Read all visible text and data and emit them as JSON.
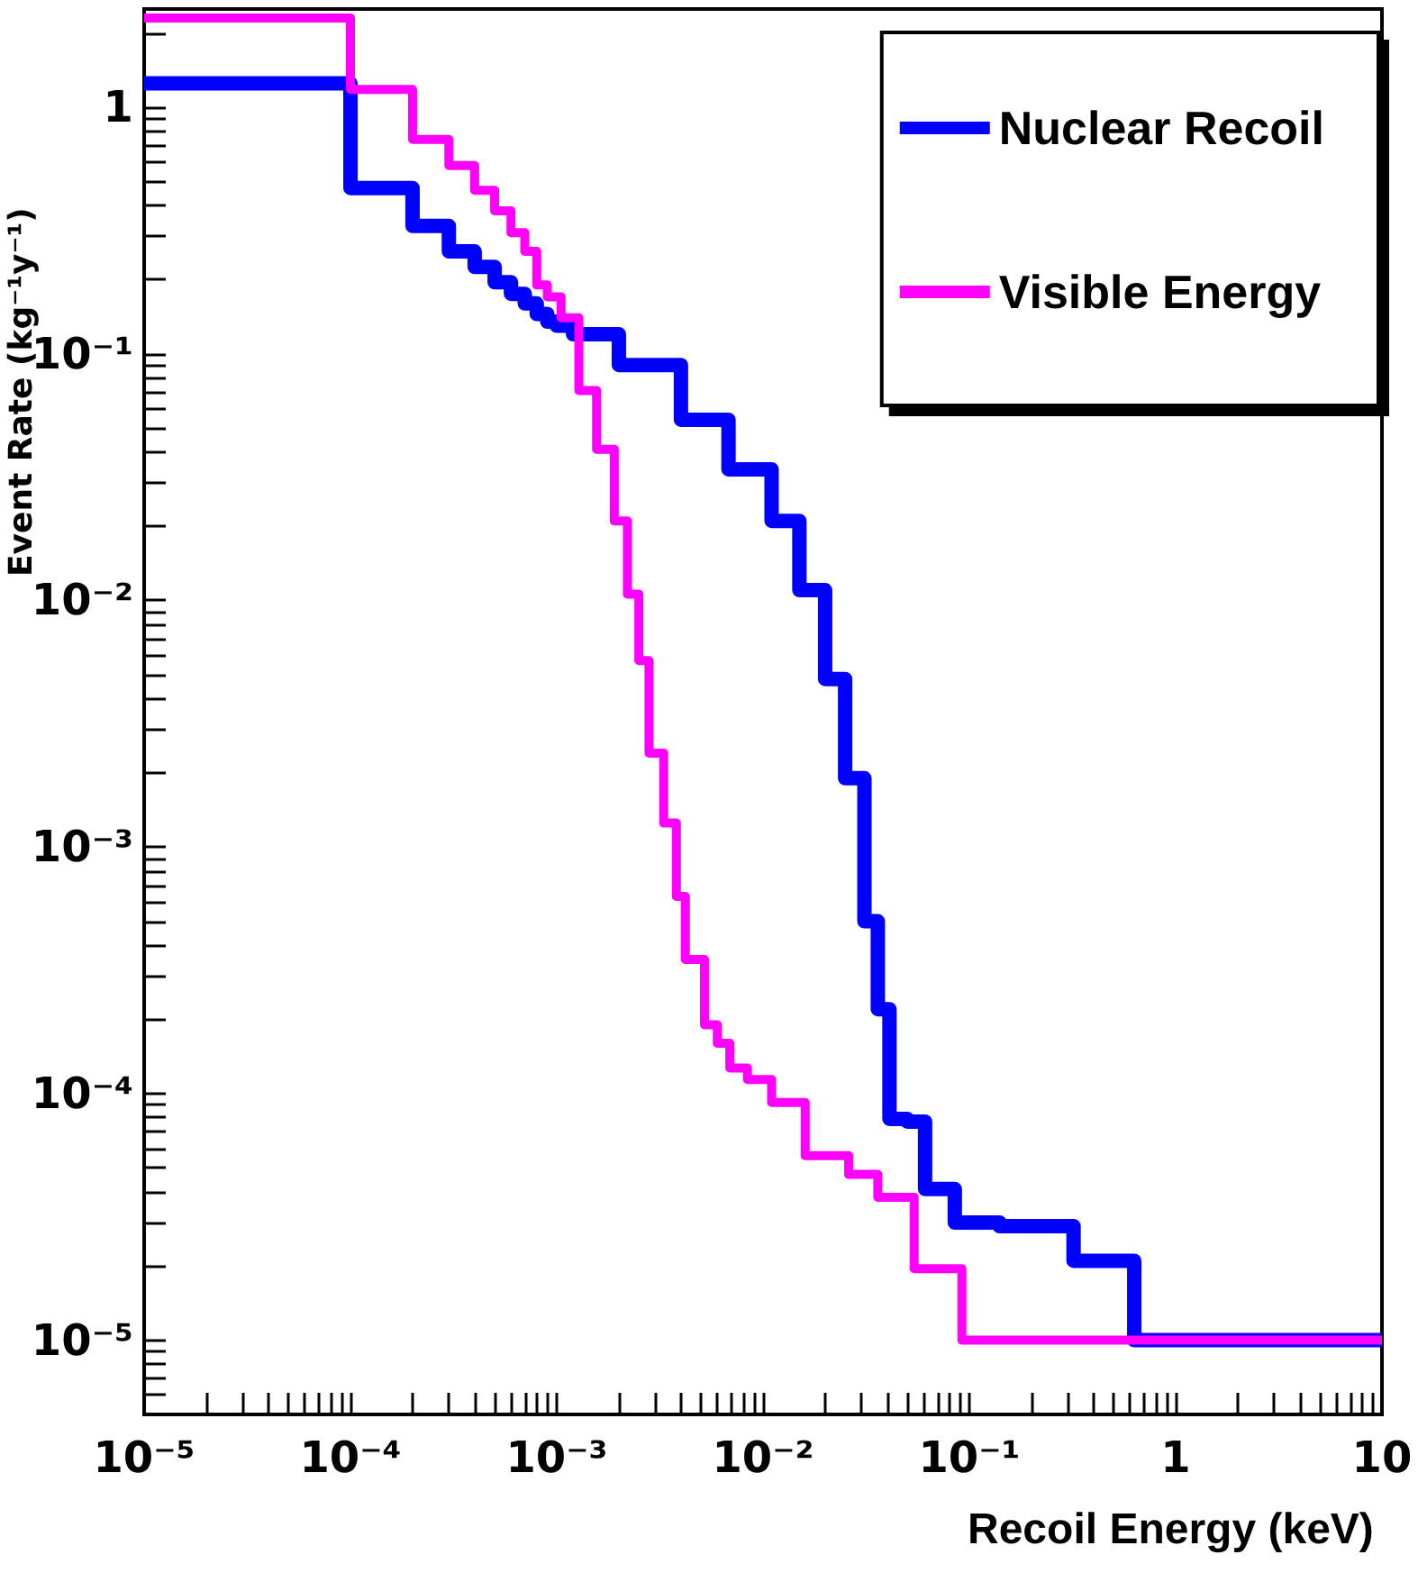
{
  "chart_data": {
    "type": "step",
    "xlabel": "Recoil Energy (keV)",
    "ylabel": "Event Rate (kg⁻¹y⁻¹)",
    "log": "xy",
    "xlim": [
      1e-05,
      10
    ],
    "ylim": [
      5e-06,
      2.5
    ],
    "xticks": [
      {
        "value": 1e-05,
        "label": "10⁻⁵"
      },
      {
        "value": 2e-05,
        "label": null
      },
      {
        "value": 3e-05,
        "label": null
      },
      {
        "value": 4e-05,
        "label": null
      },
      {
        "value": 5e-05,
        "label": null
      },
      {
        "value": 6e-05,
        "label": null
      },
      {
        "value": 7e-05,
        "label": null
      },
      {
        "value": 8e-05,
        "label": null
      },
      {
        "value": 9e-05,
        "label": null
      },
      {
        "value": 0.0001,
        "label": "10⁻⁴"
      },
      {
        "value": 0.0002,
        "label": null
      },
      {
        "value": 0.0003,
        "label": null
      },
      {
        "value": 0.0004,
        "label": null
      },
      {
        "value": 0.0005,
        "label": null
      },
      {
        "value": 0.0006,
        "label": null
      },
      {
        "value": 0.0007,
        "label": null
      },
      {
        "value": 0.0008,
        "label": null
      },
      {
        "value": 0.0009,
        "label": null
      },
      {
        "value": 0.001,
        "label": "10⁻³"
      },
      {
        "value": 0.002,
        "label": null
      },
      {
        "value": 0.003,
        "label": null
      },
      {
        "value": 0.004,
        "label": null
      },
      {
        "value": 0.005,
        "label": null
      },
      {
        "value": 0.006,
        "label": null
      },
      {
        "value": 0.007,
        "label": null
      },
      {
        "value": 0.008,
        "label": null
      },
      {
        "value": 0.009,
        "label": null
      },
      {
        "value": 0.01,
        "label": "10⁻²"
      },
      {
        "value": 0.02,
        "label": null
      },
      {
        "value": 0.03,
        "label": null
      },
      {
        "value": 0.04,
        "label": null
      },
      {
        "value": 0.05,
        "label": null
      },
      {
        "value": 0.06,
        "label": null
      },
      {
        "value": 0.07,
        "label": null
      },
      {
        "value": 0.08,
        "label": null
      },
      {
        "value": 0.09,
        "label": null
      },
      {
        "value": 0.1,
        "label": "10⁻¹"
      },
      {
        "value": 0.2,
        "label": null
      },
      {
        "value": 0.3,
        "label": null
      },
      {
        "value": 0.4,
        "label": null
      },
      {
        "value": 0.5,
        "label": null
      },
      {
        "value": 0.6,
        "label": null
      },
      {
        "value": 0.7,
        "label": null
      },
      {
        "value": 0.8,
        "label": null
      },
      {
        "value": 0.9,
        "label": null
      },
      1,
      {
        "value": 2,
        "label": null
      },
      {
        "value": 3,
        "label": null
      },
      {
        "value": 4,
        "label": null
      },
      {
        "value": 5,
        "label": null
      },
      {
        "value": 6,
        "label": null
      },
      {
        "value": 7,
        "label": null
      },
      {
        "value": 8,
        "label": null
      },
      {
        "value": 9,
        "label": null
      },
      10
    ],
    "yticks": [
      {
        "value": 6e-06,
        "label": null
      },
      {
        "value": 7e-06,
        "label": null
      },
      {
        "value": 8e-06,
        "label": null
      },
      {
        "value": 9e-06,
        "label": null
      },
      {
        "value": 1e-05,
        "label": "10⁻⁵"
      },
      {
        "value": 2e-05,
        "label": null
      },
      {
        "value": 3e-05,
        "label": null
      },
      {
        "value": 4e-05,
        "label": null
      },
      {
        "value": 5e-05,
        "label": null
      },
      {
        "value": 6e-05,
        "label": null
      },
      {
        "value": 7e-05,
        "label": null
      },
      {
        "value": 8e-05,
        "label": null
      },
      {
        "value": 9e-05,
        "label": null
      },
      {
        "value": 0.0001,
        "label": "10⁻⁴"
      },
      {
        "value": 0.0002,
        "label": null
      },
      {
        "value": 0.0003,
        "label": null
      },
      {
        "value": 0.0004,
        "label": null
      },
      {
        "value": 0.0005,
        "label": null
      },
      {
        "value": 0.0006,
        "label": null
      },
      {
        "value": 0.0007,
        "label": null
      },
      {
        "value": 0.0008,
        "label": null
      },
      {
        "value": 0.0009,
        "label": null
      },
      {
        "value": 0.001,
        "label": "10⁻³"
      },
      {
        "value": 0.002,
        "label": null
      },
      {
        "value": 0.003,
        "label": null
      },
      {
        "value": 0.004,
        "label": null
      },
      {
        "value": 0.005,
        "label": null
      },
      {
        "value": 0.006,
        "label": null
      },
      {
        "value": 0.007,
        "label": null
      },
      {
        "value": 0.008,
        "label": null
      },
      {
        "value": 0.009,
        "label": null
      },
      {
        "value": 0.01,
        "label": "10⁻²"
      },
      {
        "value": 0.02,
        "label": null
      },
      {
        "value": 0.03,
        "label": null
      },
      {
        "value": 0.04,
        "label": null
      },
      {
        "value": 0.05,
        "label": null
      },
      {
        "value": 0.06,
        "label": null
      },
      {
        "value": 0.07,
        "label": null
      },
      {
        "value": 0.08,
        "label": null
      },
      {
        "value": 0.09,
        "label": null
      },
      {
        "value": 0.1,
        "label": "10⁻¹"
      },
      {
        "value": 0.2,
        "label": null
      },
      {
        "value": 0.3,
        "label": null
      },
      {
        "value": 0.4,
        "label": null
      },
      {
        "value": 0.5,
        "label": null
      },
      {
        "value": 0.6,
        "label": null
      },
      {
        "value": 0.7,
        "label": null
      },
      {
        "value": 0.8,
        "label": null
      },
      {
        "value": 0.9,
        "label": null
      },
      1,
      {
        "value": 2,
        "label": null
      }
    ],
    "legend": "top right",
    "grid": false,
    "marker": "none",
    "line_style": "solid",
    "series": [
      {
        "name": "Nuclear Recoil",
        "color": "#0000ff",
        "x": [
          1e-05,
          0.0001,
          0.0002,
          0.0003,
          0.0004,
          0.0005,
          0.0006,
          0.0007,
          0.0008,
          0.0009,
          0.001,
          0.0012,
          0.002,
          0.004,
          0.0068,
          0.011,
          0.015,
          0.02,
          0.025,
          0.031,
          0.036,
          0.041,
          0.05,
          0.061,
          0.085,
          0.14,
          0.32,
          0.63,
          10
        ],
        "values": [
          1.25,
          0.47,
          0.33,
          0.26,
          0.225,
          0.195,
          0.175,
          0.16,
          0.145,
          0.135,
          0.13,
          0.12,
          0.09,
          0.054,
          0.034,
          0.021,
          0.011,
          0.0048,
          0.0019,
          0.0005,
          0.00022,
          7.9e-05,
          7.7e-05,
          4.1e-05,
          3e-05,
          2.9e-05,
          2.1e-05,
          1e-05,
          1e-05
        ]
      },
      {
        "name": "Visible Energy",
        "color": "#ff00ff",
        "x": [
          1e-05,
          0.0001,
          0.0002,
          0.0003,
          0.0004,
          0.0005,
          0.0006,
          0.0007,
          0.0008,
          0.0009,
          0.00105,
          0.00128,
          0.00156,
          0.0019,
          0.0022,
          0.0025,
          0.0028,
          0.0033,
          0.0038,
          0.0042,
          0.0052,
          0.006,
          0.0069,
          0.0084,
          0.011,
          0.016,
          0.026,
          0.036,
          0.054,
          0.08,
          0.092,
          10
        ],
        "values": [
          2.3,
          1.18,
          0.74,
          0.58,
          0.46,
          0.38,
          0.31,
          0.26,
          0.19,
          0.17,
          0.14,
          0.071,
          0.041,
          0.021,
          0.0106,
          0.0057,
          0.0024,
          0.00125,
          0.00063,
          0.00035,
          0.00019,
          0.00016,
          0.000127,
          0.000114,
          9.2e-05,
          5.6e-05,
          4.7e-05,
          3.8e-05,
          1.95e-05,
          1.95e-05,
          1e-05,
          1e-05
        ]
      }
    ]
  }
}
